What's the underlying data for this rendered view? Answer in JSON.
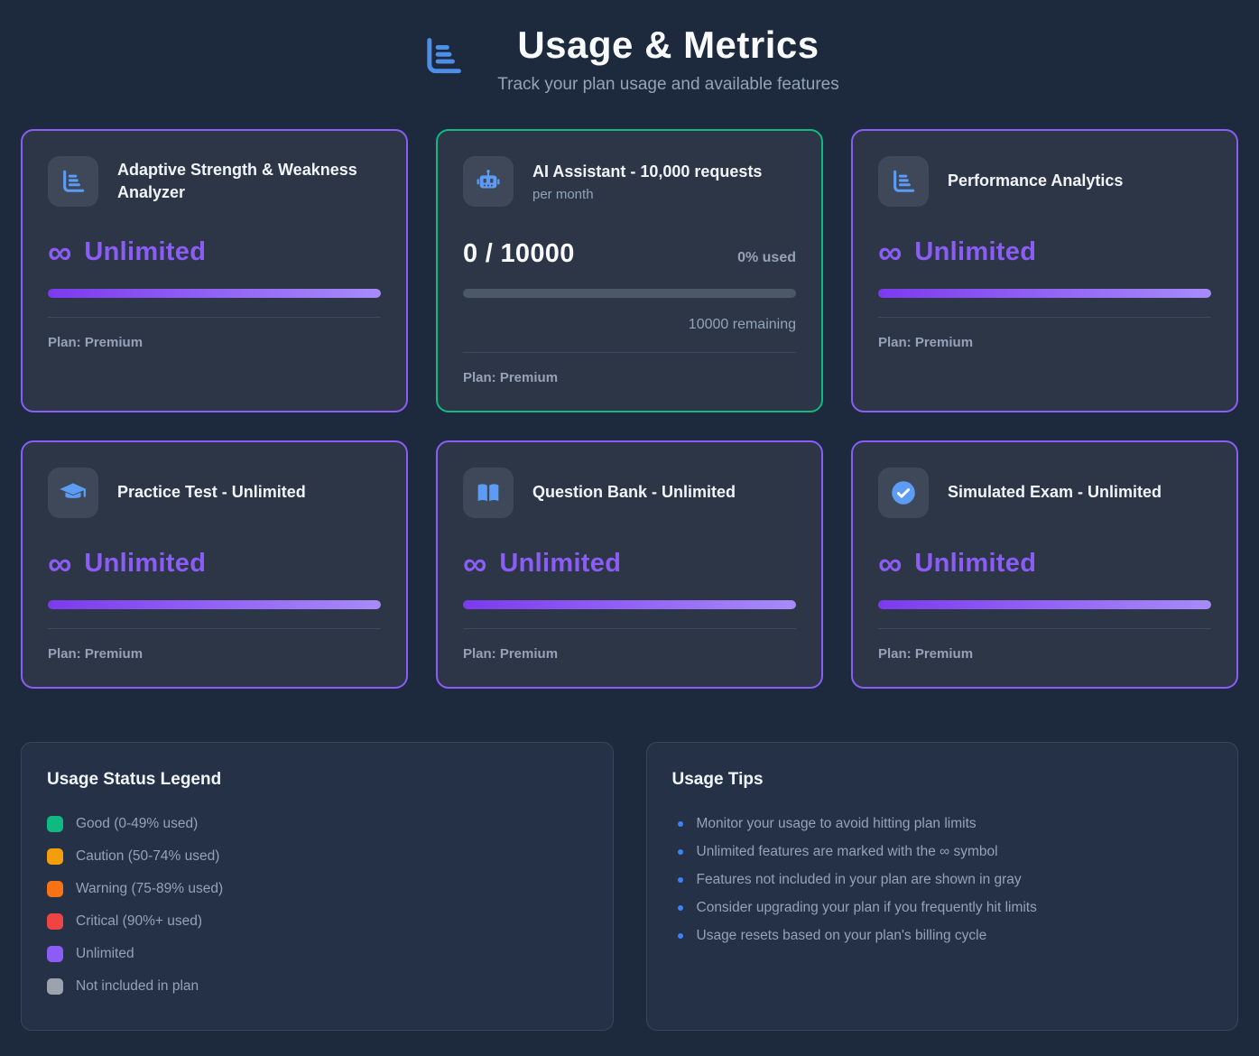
{
  "header": {
    "icon": "bar-chart-icon",
    "title": "Usage & Metrics",
    "subtitle": "Track your plan usage and available features"
  },
  "cards": [
    {
      "icon": "bar-chart-icon",
      "title": "Adaptive Strength & Weakness Analyzer",
      "status": "unlimited",
      "infinity_symbol": "∞",
      "unlimited_label": "Unlimited",
      "progress_percent": 100,
      "plan": "Plan: Premium",
      "border_color": "#8b5cf6"
    },
    {
      "icon": "robot-icon",
      "title": "AI Assistant - 10,000 requests",
      "subtitle": "per month",
      "status": "metered",
      "usage": "0 / 10000",
      "used_label": "0% used",
      "remaining_label": "10000 remaining",
      "progress_percent": 0,
      "plan": "Plan: Premium",
      "border_color": "#10b981"
    },
    {
      "icon": "bar-chart-icon",
      "title": "Performance Analytics",
      "status": "unlimited",
      "infinity_symbol": "∞",
      "unlimited_label": "Unlimited",
      "progress_percent": 100,
      "plan": "Plan: Premium",
      "border_color": "#8b5cf6"
    },
    {
      "icon": "graduation-cap-icon",
      "title": "Practice Test - Unlimited",
      "status": "unlimited",
      "infinity_symbol": "∞",
      "unlimited_label": "Unlimited",
      "progress_percent": 100,
      "plan": "Plan: Premium",
      "border_color": "#8b5cf6"
    },
    {
      "icon": "open-book-icon",
      "title": "Question Bank - Unlimited",
      "status": "unlimited",
      "infinity_symbol": "∞",
      "unlimited_label": "Unlimited",
      "progress_percent": 100,
      "plan": "Plan: Premium",
      "border_color": "#8b5cf6"
    },
    {
      "icon": "check-circle-icon",
      "title": "Simulated Exam - Unlimited",
      "status": "unlimited",
      "infinity_symbol": "∞",
      "unlimited_label": "Unlimited",
      "progress_percent": 100,
      "plan": "Plan: Premium",
      "border_color": "#8b5cf6"
    }
  ],
  "legend": {
    "title": "Usage Status Legend",
    "items": [
      {
        "label": "Good (0-49% used)",
        "color": "#10b981"
      },
      {
        "label": "Caution (50-74% used)",
        "color": "#f59e0b"
      },
      {
        "label": "Warning (75-89% used)",
        "color": "#f97316"
      },
      {
        "label": "Critical (90%+ used)",
        "color": "#ef4444"
      },
      {
        "label": "Unlimited",
        "color": "#8b5cf6"
      },
      {
        "label": "Not included in plan",
        "color": "#9ca3af"
      }
    ]
  },
  "tips": {
    "title": "Usage Tips",
    "bullet_color": "#3b82f6",
    "items": [
      "Monitor your usage to avoid hitting plan limits",
      "Unlimited features are marked with the ∞ symbol",
      "Features not included in your plan are shown in gray",
      "Consider upgrading your plan if you frequently hit limits",
      "Usage resets based on your plan's billing cycle"
    ]
  },
  "colors": {
    "page_background": "#1d2a3e",
    "card_background": "#2c3647",
    "panel_background": "#243146",
    "icon_box": "#3e4859",
    "purple_accent": "#8b5cf6",
    "green_accent": "#10b981",
    "progress_track": "#4b5866",
    "progress_fill_start": "#7c3aed",
    "progress_fill_end": "#a78bfa",
    "muted_text": "#94a3b8",
    "icon_blue": "#5d9cf5"
  }
}
